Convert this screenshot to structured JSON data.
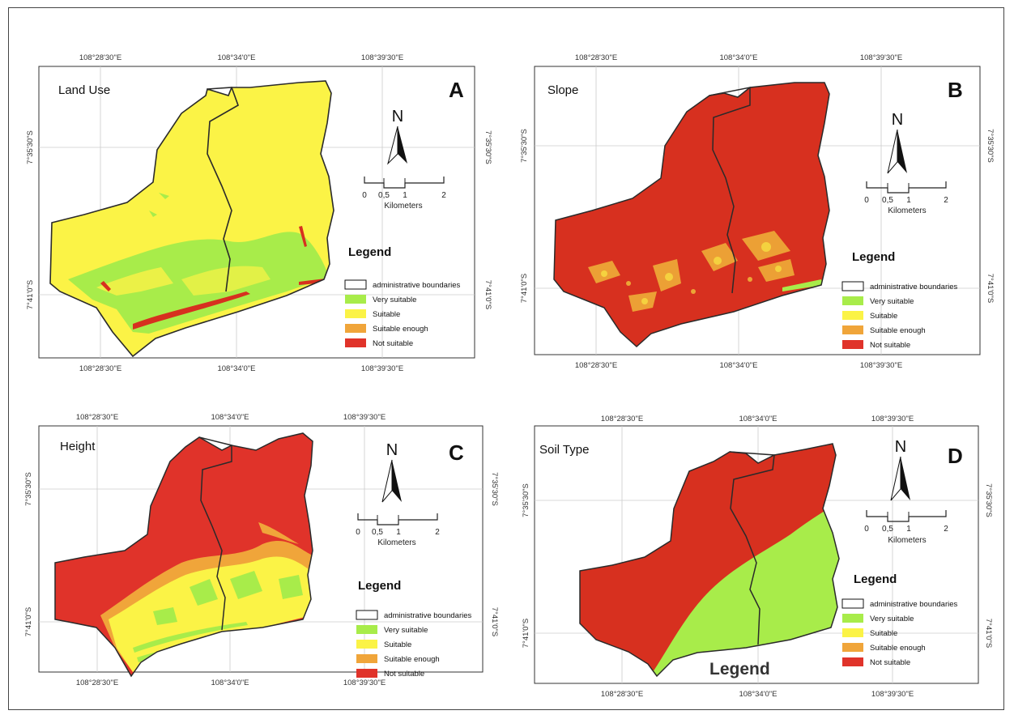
{
  "coords": {
    "lon_left": "108°28'30\"E",
    "lon_mid": "108°34'0\"E",
    "lon_right": "108°39'30\"E",
    "lat_top": "7°35'30\"S",
    "lat_bottom": "7°41'0\"S"
  },
  "north": {
    "label": "N"
  },
  "scale": {
    "ticks": [
      "0",
      "0,5",
      "1",
      "2"
    ],
    "unit": "Kilometers"
  },
  "legend": {
    "title": "Legend",
    "items": [
      {
        "label": "administrative boundaries",
        "color": "#ffffff"
      },
      {
        "label": "Very suitable",
        "color": "#a8ec4a"
      },
      {
        "label": "Suitable",
        "color": "#fbf346"
      },
      {
        "label": "Suitable enough",
        "color": "#f0a53a"
      },
      {
        "label": "Not suitable",
        "color": "#e0332a"
      }
    ]
  },
  "panels": [
    {
      "title": "Land Use",
      "letter": "A"
    },
    {
      "title": "Slope",
      "letter": "B"
    },
    {
      "title": "Height",
      "letter": "C"
    },
    {
      "title": "Soil Type",
      "letter": "D",
      "extra_label": "Legend"
    }
  ],
  "colors": {
    "very_suitable": "#a8ec4a",
    "suitable": "#fbf346",
    "suitable_enough": "#f0a53a",
    "not_suitable": "#e0332a",
    "not_suitable_dark": "#d7301f",
    "boundary": "#2a2a2a"
  }
}
